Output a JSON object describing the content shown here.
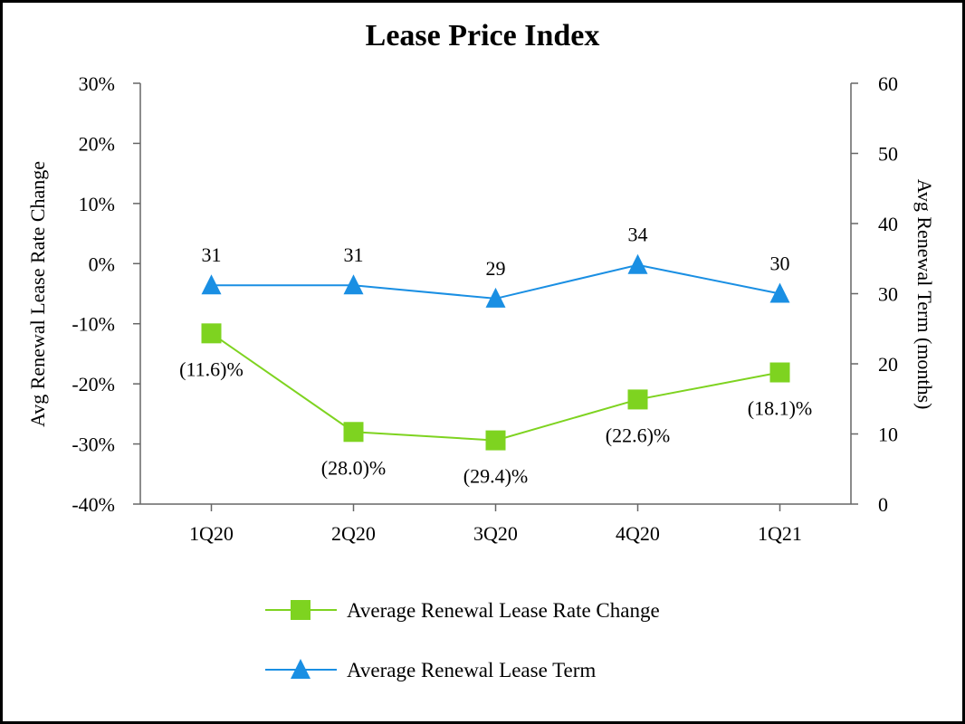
{
  "chart_data": {
    "type": "line",
    "title": "Lease Price Index",
    "categories": [
      "1Q20",
      "2Q20",
      "3Q20",
      "4Q20",
      "1Q21"
    ],
    "ylabel": "Avg Renewal Lease Rate Change",
    "y2label": "Avg Renewal Term (months)",
    "ylim": [
      -40,
      30
    ],
    "y_ticks": [
      30,
      20,
      10,
      0,
      -10,
      -20,
      -30,
      -40
    ],
    "y_tick_labels": [
      "30%",
      "20%",
      "10%",
      "0%",
      "-10%",
      "-20%",
      "-30%",
      "-40%"
    ],
    "y2lim": [
      0,
      60
    ],
    "y2_ticks": [
      60,
      50,
      40,
      30,
      20,
      10,
      0
    ],
    "y2_tick_labels": [
      "60",
      "50",
      "40",
      "30",
      "20",
      "10",
      "0"
    ],
    "legend_position": "bottom",
    "series": [
      {
        "name": "Average Renewal Lease Rate Change",
        "axis": "left",
        "marker": "square",
        "color": "#7ED320",
        "values": [
          -11.6,
          -28.0,
          -29.4,
          -22.6,
          -18.1
        ],
        "labels": [
          "(11.6)%",
          "(28.0)%",
          "(29.4)%",
          "(22.6)%",
          "(18.1)%"
        ],
        "label_position": "below"
      },
      {
        "name": "Average Renewal Lease Term",
        "axis": "right",
        "marker": "triangle",
        "color": "#1A8FE3",
        "values": [
          31.2,
          31.2,
          29.3,
          34.1,
          30.0
        ],
        "labels": [
          "31",
          "31",
          "29",
          "34",
          "30"
        ],
        "label_position": "above"
      }
    ]
  },
  "colors": {
    "axis": "#666666",
    "frame": "#000000"
  }
}
